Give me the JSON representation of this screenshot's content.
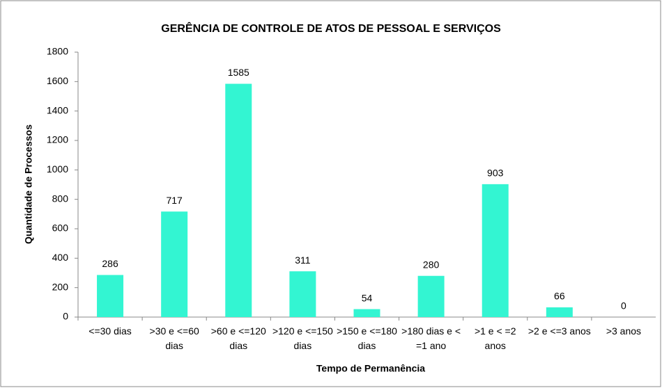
{
  "chart_data": {
    "type": "bar",
    "title": "GERÊNCIA DE CONTROLE DE ATOS DE PESSOAL E SERVIÇOS",
    "x_label": "Tempo de Permanência",
    "y_label": "Quantidade de Processos",
    "categories": [
      "<=30 dias",
      ">30 e <=60 dias",
      ">60 e <=120 dias",
      ">120 e <=150 dias",
      ">150 e <=180 dias",
      ">180 dias e < =1 ano",
      ">1 e < =2 anos",
      ">2 e <=3 anos",
      ">3 anos"
    ],
    "values": [
      286,
      717,
      1585,
      311,
      54,
      280,
      903,
      66,
      0
    ],
    "color": "#33f5d2",
    "ylim": [
      0,
      1800
    ],
    "yticks": [
      0,
      200,
      400,
      600,
      800,
      1000,
      1200,
      1400,
      1600,
      1800
    ],
    "grid": false
  }
}
